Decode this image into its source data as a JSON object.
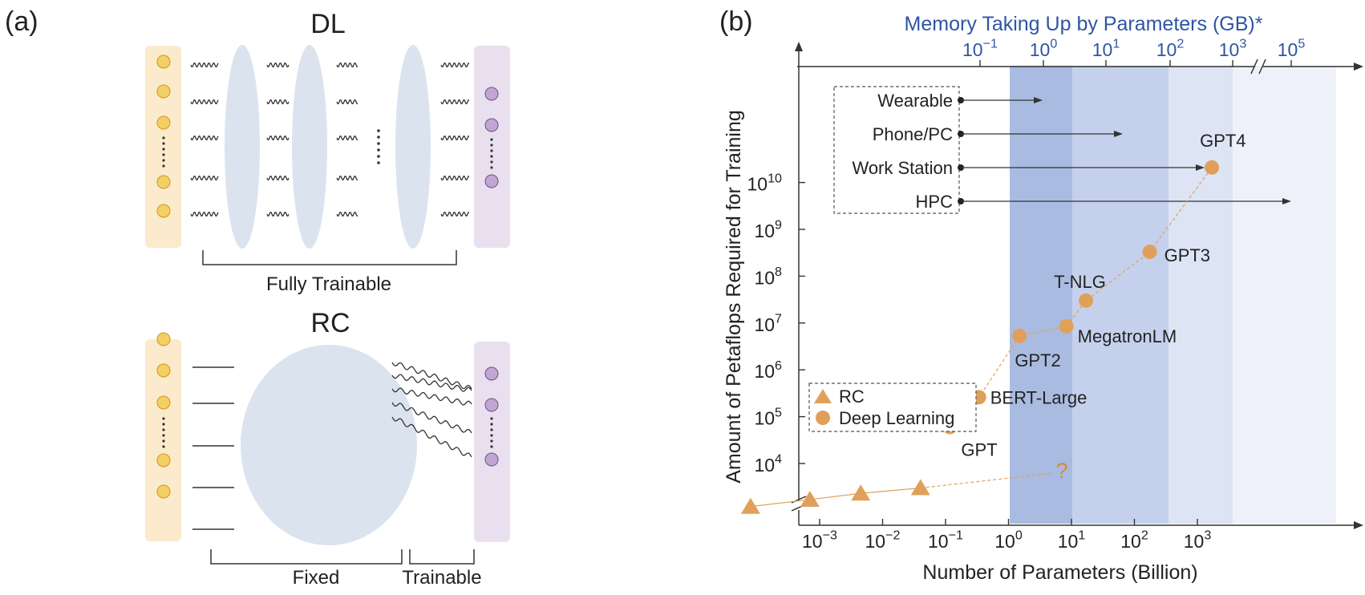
{
  "panel_a": {
    "label": "(a)",
    "dl": {
      "title": "DL",
      "caption": "Fully Trainable"
    },
    "rc": {
      "title": "RC",
      "fixed": "Fixed",
      "trainable": "Trainable"
    }
  },
  "panel_b": {
    "label": "(b)",
    "top_axis_title": "Memory Taking Up by Parameters (GB)*",
    "top_ticks": [
      {
        "base": "10",
        "exp": "−1"
      },
      {
        "base": "10",
        "exp": "0"
      },
      {
        "base": "10",
        "exp": "1"
      },
      {
        "base": "10",
        "exp": "2"
      },
      {
        "base": "10",
        "exp": "3"
      },
      {
        "base": "10",
        "exp": "5"
      }
    ],
    "x_axis_title": "Number of Parameters (Billion)",
    "x_ticks": [
      {
        "base": "10",
        "exp": "−3"
      },
      {
        "base": "10",
        "exp": "−2"
      },
      {
        "base": "10",
        "exp": "−1"
      },
      {
        "base": "10",
        "exp": "0"
      },
      {
        "base": "10",
        "exp": "1"
      },
      {
        "base": "10",
        "exp": "2"
      },
      {
        "base": "10",
        "exp": "3"
      }
    ],
    "y_axis_title": "Amount of Petaflops Required for Training",
    "y_ticks": [
      {
        "base": "10",
        "exp": "4"
      },
      {
        "base": "10",
        "exp": "5"
      },
      {
        "base": "10",
        "exp": "6"
      },
      {
        "base": "10",
        "exp": "7"
      },
      {
        "base": "10",
        "exp": "8"
      },
      {
        "base": "10",
        "exp": "9"
      },
      {
        "base": "10",
        "exp": "10"
      }
    ],
    "devices": [
      "Wearable",
      "Phone/PC",
      "Work Station",
      "HPC"
    ],
    "legend": [
      "RC",
      "Deep Learning"
    ],
    "question_mark": "?",
    "colors": {
      "band_dark": "#a9bbe0",
      "band_mid": "#c5d1ec",
      "band_light": "#dde4f4",
      "band_faint": "#eef1f9",
      "marker": "#e0a05a",
      "accent": "#2f55a4"
    }
  },
  "chart_data": {
    "type": "scatter",
    "x_scale": "log",
    "y_scale": "log",
    "xlabel": "Number of Parameters (Billion)",
    "ylabel": "Amount of Petaflops Required for Training",
    "top_xlabel": "Memory Taking Up by Parameters (GB)*",
    "series": [
      {
        "name": "RC",
        "marker": "triangle",
        "points": [
          {
            "x": 8e-05,
            "y": 1200
          },
          {
            "x": 0.0007,
            "y": 1700
          },
          {
            "x": 0.0045,
            "y": 2300
          },
          {
            "x": 0.04,
            "y": 3000
          }
        ]
      },
      {
        "name": "Deep Learning",
        "marker": "circle",
        "points": [
          {
            "label": "GPT",
            "x": 0.117,
            "y": 60000
          },
          {
            "label": "BERT-Large",
            "x": 0.34,
            "y": 260000
          },
          {
            "label": "GPT2",
            "x": 1.5,
            "y": 5300000
          },
          {
            "label": "MegatronLM",
            "x": 8.3,
            "y": 8500000
          },
          {
            "label": "T-NLG",
            "x": 17,
            "y": 30000000
          },
          {
            "label": "GPT3",
            "x": 175,
            "y": 330000000
          },
          {
            "label": "GPT4",
            "x": 1700,
            "y": 21000000000
          }
        ]
      }
    ]
  }
}
